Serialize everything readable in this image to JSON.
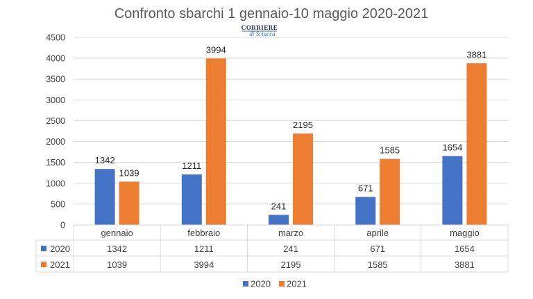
{
  "chart_data": {
    "type": "bar",
    "title": "Confronto sbarchi 1 gennaio-10 maggio  2020-2021",
    "categories": [
      "gennaio",
      "febbraio",
      "marzo",
      "aprile",
      "maggio"
    ],
    "series": [
      {
        "name": "2020",
        "color": "#4472C4",
        "values": [
          1342,
          1211,
          241,
          671,
          1654
        ]
      },
      {
        "name": "2021",
        "color": "#ED7D31",
        "values": [
          1039,
          3994,
          2195,
          1585,
          3881
        ]
      }
    ],
    "ylim": [
      0,
      4500
    ],
    "yticks": [
      0,
      500,
      1000,
      1500,
      2000,
      2500,
      3000,
      3500,
      4000,
      4500
    ],
    "grid": true,
    "data_table": true,
    "legend_position": "bottom"
  },
  "logo": {
    "top": "CORRIERE",
    "bottom": "di Sciacca"
  }
}
